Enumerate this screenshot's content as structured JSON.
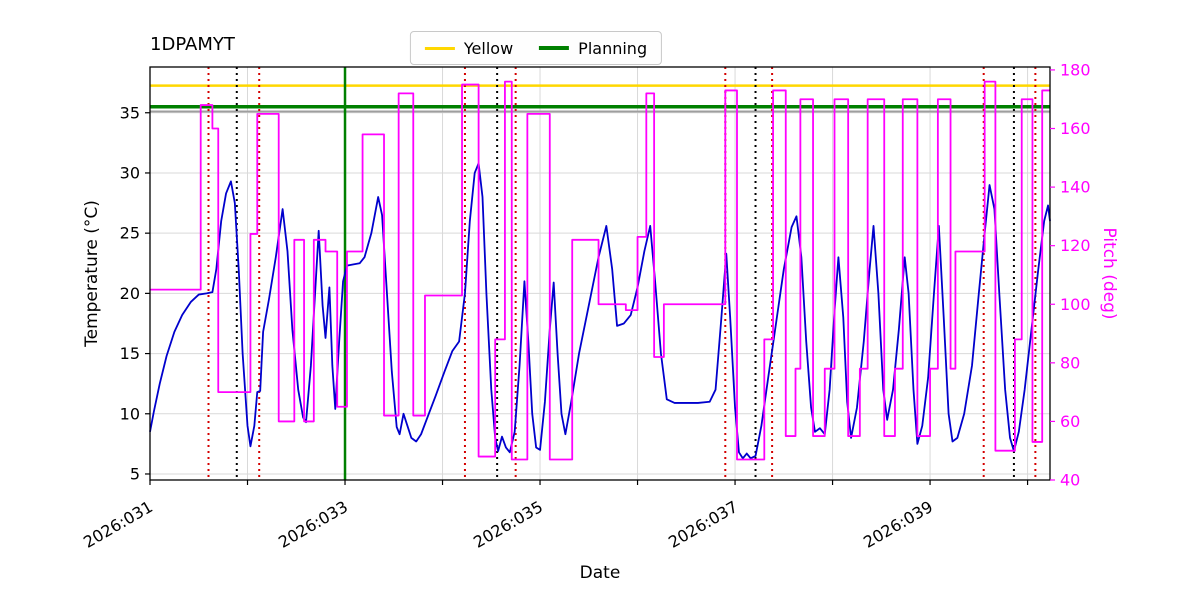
{
  "title": "1DPAMYT",
  "legend": [
    {
      "label": "Yellow",
      "color": "#ffd700",
      "thickness": 3
    },
    {
      "label": "Planning",
      "color": "#008000",
      "thickness": 4
    }
  ],
  "colors": {
    "grid": "#d9d9d9",
    "axis": "#000000",
    "temperature": "#0000cd",
    "pitch": "#ff00ff",
    "yellow_limit": "#ffd700",
    "planning": "#008000",
    "gray_limit": "#9e9e9e",
    "red_marker": "#d40000",
    "black_marker": "#000000"
  },
  "axes": {
    "x_label": "Date",
    "y_left_label": "Temperature (°C)",
    "y_right_label": "Pitch (deg)",
    "x_range": [
      31.0,
      40.23
    ],
    "y_left_range": [
      4.5,
      38.8
    ],
    "y_right_range": [
      40,
      181
    ],
    "x_grid": [
      31,
      32,
      33,
      34,
      35,
      36,
      37,
      38,
      39,
      40
    ],
    "x_ticks": [
      {
        "value": 31,
        "label": "2026:031"
      },
      {
        "value": 33,
        "label": "2026:033"
      },
      {
        "value": 35,
        "label": "2026:035"
      },
      {
        "value": 37,
        "label": "2026:037"
      },
      {
        "value": 39,
        "label": "2026:039"
      }
    ],
    "y_left_ticks": [
      5,
      10,
      15,
      20,
      25,
      30,
      35
    ],
    "y_right_ticks": [
      40,
      60,
      80,
      100,
      120,
      140,
      160,
      180
    ]
  },
  "chart_data": {
    "type": "line",
    "title": "1DPAMYT",
    "xlabel": "Date",
    "ylabel_left": "Temperature (°C)",
    "ylabel_right": "Pitch (deg)",
    "grid": true,
    "legend_position": "top-center",
    "series": [
      {
        "name": "temperature",
        "axis": "left",
        "style": "line",
        "color": "#0000cd",
        "width": 1.8,
        "x": [
          31.0,
          31.04,
          31.1,
          31.17,
          31.25,
          31.33,
          31.42,
          31.5,
          31.58,
          31.64,
          31.68,
          31.73,
          31.78,
          31.83,
          31.87,
          31.91,
          31.95,
          32.0,
          32.03,
          32.07,
          32.1,
          32.13,
          32.16,
          32.22,
          32.29,
          32.36,
          32.41,
          32.46,
          32.52,
          32.57,
          32.6,
          32.65,
          32.7,
          32.73,
          32.77,
          32.8,
          32.84,
          32.87,
          32.9,
          32.94,
          32.98,
          33.02,
          33.08,
          33.15,
          33.2,
          33.27,
          33.34,
          33.38,
          33.43,
          33.48,
          33.53,
          33.56,
          33.6,
          33.64,
          33.68,
          33.73,
          33.78,
          33.85,
          33.93,
          34.02,
          34.1,
          34.17,
          34.23,
          34.28,
          34.33,
          34.37,
          34.41,
          34.45,
          34.5,
          34.54,
          34.57,
          34.61,
          34.65,
          34.69,
          34.74,
          34.79,
          34.84,
          34.88,
          34.92,
          34.96,
          35.0,
          35.05,
          35.1,
          35.14,
          35.18,
          35.22,
          35.26,
          35.32,
          35.4,
          35.5,
          35.6,
          35.68,
          35.74,
          35.79,
          35.86,
          35.93,
          36.0,
          36.07,
          36.13,
          36.18,
          36.24,
          36.3,
          36.38,
          36.5,
          36.62,
          36.74,
          36.8,
          36.86,
          36.91,
          36.95,
          37.0,
          37.04,
          37.08,
          37.12,
          37.16,
          37.21,
          37.27,
          37.34,
          37.42,
          37.5,
          37.58,
          37.63,
          37.68,
          37.73,
          37.78,
          37.82,
          37.87,
          37.92,
          37.97,
          38.02,
          38.06,
          38.11,
          38.15,
          38.19,
          38.25,
          38.32,
          38.38,
          38.42,
          38.47,
          38.52,
          38.56,
          38.62,
          38.68,
          38.74,
          38.78,
          38.83,
          38.87,
          38.92,
          38.98,
          39.04,
          39.09,
          39.14,
          39.19,
          39.23,
          39.28,
          39.35,
          39.43,
          39.5,
          39.56,
          39.61,
          39.66,
          39.71,
          39.77,
          39.82,
          39.86,
          39.91,
          39.97,
          40.04,
          40.11,
          40.17,
          40.21,
          40.23
        ],
        "y": [
          8.5,
          10.2,
          12.5,
          14.8,
          16.8,
          18.2,
          19.3,
          19.9,
          20.0,
          20.1,
          22.0,
          26.0,
          28.3,
          29.3,
          27.5,
          22.0,
          15.0,
          9.0,
          7.3,
          9.0,
          11.8,
          11.9,
          16.8,
          19.5,
          23.0,
          27.0,
          23.5,
          17.0,
          12.0,
          9.7,
          9.3,
          14.0,
          21.0,
          25.2,
          19.0,
          16.3,
          20.5,
          14.0,
          10.4,
          16.0,
          21.0,
          22.3,
          22.4,
          22.5,
          23.0,
          25.0,
          28.0,
          26.5,
          20.0,
          13.5,
          8.9,
          8.3,
          10.0,
          9.0,
          8.0,
          7.7,
          8.3,
          9.8,
          11.5,
          13.5,
          15.2,
          16.0,
          20.0,
          26.0,
          30.0,
          30.8,
          28.0,
          20.0,
          12.0,
          8.0,
          6.9,
          8.1,
          7.2,
          6.8,
          8.5,
          14.0,
          21.0,
          16.0,
          10.0,
          7.2,
          7.0,
          11.0,
          17.0,
          20.9,
          15.0,
          10.0,
          8.3,
          11.0,
          15.0,
          19.0,
          23.0,
          25.6,
          22.0,
          17.3,
          17.5,
          18.2,
          20.5,
          23.5,
          25.6,
          21.0,
          15.0,
          11.2,
          10.9,
          10.9,
          10.9,
          11.0,
          12.0,
          18.0,
          23.3,
          18.0,
          10.5,
          6.8,
          6.3,
          6.7,
          6.3,
          6.5,
          9.0,
          13.0,
          17.5,
          22.0,
          25.5,
          26.4,
          23.0,
          16.0,
          10.5,
          8.5,
          8.8,
          8.3,
          12.0,
          18.5,
          23.0,
          18.0,
          11.0,
          8.0,
          10.5,
          16.0,
          22.0,
          25.6,
          20.0,
          12.0,
          9.5,
          12.0,
          17.0,
          23.0,
          20.0,
          12.0,
          7.5,
          9.0,
          13.0,
          20.0,
          25.6,
          18.0,
          10.0,
          7.7,
          8.0,
          10.0,
          14.0,
          20.0,
          25.0,
          29.0,
          27.0,
          20.0,
          12.0,
          8.0,
          6.9,
          8.5,
          12.0,
          17.0,
          22.0,
          26.0,
          27.3,
          26.0
        ]
      },
      {
        "name": "pitch",
        "axis": "right",
        "style": "step",
        "color": "#ff00ff",
        "width": 1.8,
        "x": [
          31.0,
          31.52,
          31.64,
          31.7,
          32.03,
          32.1,
          32.32,
          32.48,
          32.58,
          32.68,
          32.8,
          32.92,
          33.02,
          33.18,
          33.4,
          33.55,
          33.7,
          33.82,
          34.2,
          34.37,
          34.54,
          34.64,
          34.71,
          34.87,
          35.1,
          35.33,
          35.6,
          35.88,
          36.0,
          36.09,
          36.17,
          36.27,
          36.9,
          37.02,
          37.3,
          37.39,
          37.52,
          37.62,
          37.67,
          37.8,
          37.92,
          38.02,
          38.16,
          38.28,
          38.36,
          38.53,
          38.64,
          38.72,
          38.87,
          39.0,
          39.08,
          39.21,
          39.26,
          39.56,
          39.67,
          39.87,
          39.94,
          40.05,
          40.15
        ],
        "y": [
          105,
          168,
          160,
          70,
          124,
          165,
          60,
          122,
          60,
          122,
          118,
          65,
          118,
          158,
          62,
          172,
          62,
          103,
          175,
          48,
          88,
          176,
          47,
          165,
          47,
          122,
          100,
          98,
          123,
          172,
          82,
          100,
          173,
          47,
          88,
          173,
          55,
          78,
          170,
          55,
          78,
          170,
          55,
          78,
          170,
          55,
          78,
          170,
          55,
          78,
          170,
          78,
          118,
          176,
          50,
          88,
          170,
          53,
          173
        ]
      }
    ],
    "hlines": [
      {
        "name": "gray-limit-line",
        "y": 35.1,
        "axis": "left",
        "color": "#9e9e9e",
        "width": 2,
        "style": "solid"
      },
      {
        "name": "yellow-limit-line",
        "y": 37.25,
        "axis": "left",
        "color": "#ffd700",
        "width": 2.5,
        "style": "solid"
      },
      {
        "name": "planning-line",
        "y": 35.5,
        "axis": "left",
        "color": "#008000",
        "width": 3.5,
        "style": "solid"
      }
    ],
    "vlines": [
      {
        "name": "planning-vline",
        "x": 33.0,
        "color": "#008000",
        "width": 2.5,
        "style": "solid"
      },
      {
        "name": "red-marker-1",
        "x": 31.6,
        "color": "#d40000",
        "width": 2,
        "style": "dotted"
      },
      {
        "name": "red-marker-2",
        "x": 32.12,
        "color": "#d40000",
        "width": 2,
        "style": "dotted"
      },
      {
        "name": "red-marker-3",
        "x": 34.23,
        "color": "#d40000",
        "width": 2,
        "style": "dotted"
      },
      {
        "name": "red-marker-4",
        "x": 34.75,
        "color": "#d40000",
        "width": 2,
        "style": "dotted"
      },
      {
        "name": "red-marker-5",
        "x": 36.9,
        "color": "#d40000",
        "width": 2,
        "style": "dotted"
      },
      {
        "name": "red-marker-6",
        "x": 37.38,
        "color": "#d40000",
        "width": 2,
        "style": "dotted"
      },
      {
        "name": "red-marker-7",
        "x": 39.55,
        "color": "#d40000",
        "width": 2,
        "style": "dotted"
      },
      {
        "name": "red-marker-8",
        "x": 40.08,
        "color": "#d40000",
        "width": 2,
        "style": "dotted"
      },
      {
        "name": "black-marker-1",
        "x": 31.89,
        "color": "#000000",
        "width": 2,
        "style": "dotted"
      },
      {
        "name": "black-marker-2",
        "x": 34.56,
        "color": "#000000",
        "width": 2,
        "style": "dotted"
      },
      {
        "name": "black-marker-3",
        "x": 37.21,
        "color": "#000000",
        "width": 2,
        "style": "dotted"
      },
      {
        "name": "black-marker-4",
        "x": 39.86,
        "color": "#000000",
        "width": 2,
        "style": "dotted"
      }
    ]
  }
}
